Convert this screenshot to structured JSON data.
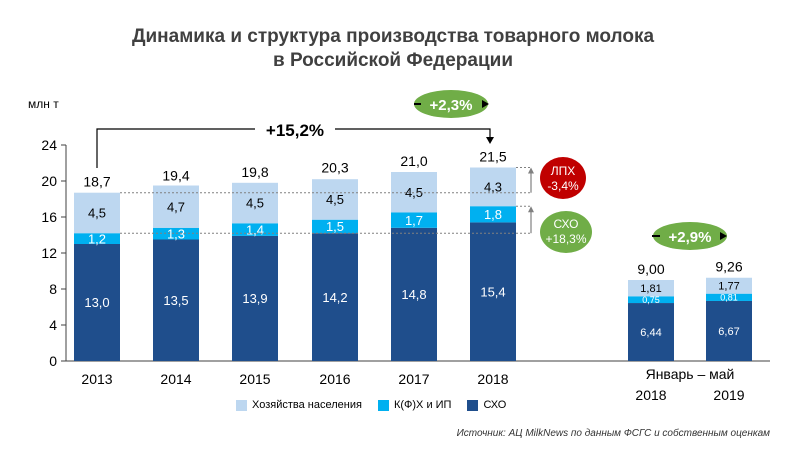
{
  "title_line1": "Динамика и структура производства товарного молока",
  "title_line2": "в Российской Федерации",
  "source": "Источник: АЦ MilkNews по данным ФСГС и собственным оценкам",
  "legend": {
    "households": "Хозяйства населения",
    "farms": "К(Ф)Х и ИП",
    "agri": "СХО"
  },
  "colors": {
    "households": "#bdd7f0",
    "farms": "#00b0f0",
    "agri": "#1f4e8c",
    "badge_green": "#70ad47",
    "badge_red": "#c00000"
  },
  "annotations": {
    "growth_total": "+15,2%",
    "growth_2018": "+2,3%",
    "growth_jan_may": "+2,9%",
    "lph_label": "ЛПХ",
    "lph_value": "-3,4%",
    "cho_label": "СХО",
    "cho_value": "+18,3%"
  },
  "chart_data": {
    "type": "bar",
    "stacked": true,
    "ylabel": "млн т",
    "ylim": [
      0,
      24
    ],
    "yticks": [
      0,
      4,
      8,
      12,
      16,
      20,
      24
    ],
    "categories": [
      "2013",
      "2014",
      "2015",
      "2016",
      "2017",
      "2018",
      "2018",
      "2019"
    ],
    "group_label": "Январь – май",
    "series": [
      {
        "name": "СХО",
        "values": [
          13.0,
          13.5,
          13.9,
          14.2,
          14.8,
          15.4,
          6.44,
          6.67
        ],
        "labels": [
          "13,0",
          "13,5",
          "13,9",
          "14,2",
          "14,8",
          "15,4",
          "6,44",
          "6,67"
        ]
      },
      {
        "name": "К(Ф)Х и ИП",
        "values": [
          1.2,
          1.3,
          1.4,
          1.5,
          1.7,
          1.8,
          0.75,
          0.81
        ],
        "labels": [
          "1,2",
          "1,3",
          "1,4",
          "1,5",
          "1,7",
          "1,8",
          "0,75",
          "0,81"
        ]
      },
      {
        "name": "Хозяйства населения",
        "values": [
          4.5,
          4.7,
          4.5,
          4.5,
          4.5,
          4.3,
          1.81,
          1.77
        ],
        "labels": [
          "4,5",
          "4,7",
          "4,5",
          "4,5",
          "4,5",
          "4,3",
          "1,81",
          "1,77"
        ]
      }
    ],
    "totals": [
      18.7,
      19.4,
      19.8,
      20.3,
      21.0,
      21.5,
      9.0,
      9.26
    ],
    "total_labels": [
      "18,7",
      "19,4",
      "19,8",
      "20,3",
      "21,0",
      "21,5",
      "9,00",
      "9,26"
    ]
  }
}
